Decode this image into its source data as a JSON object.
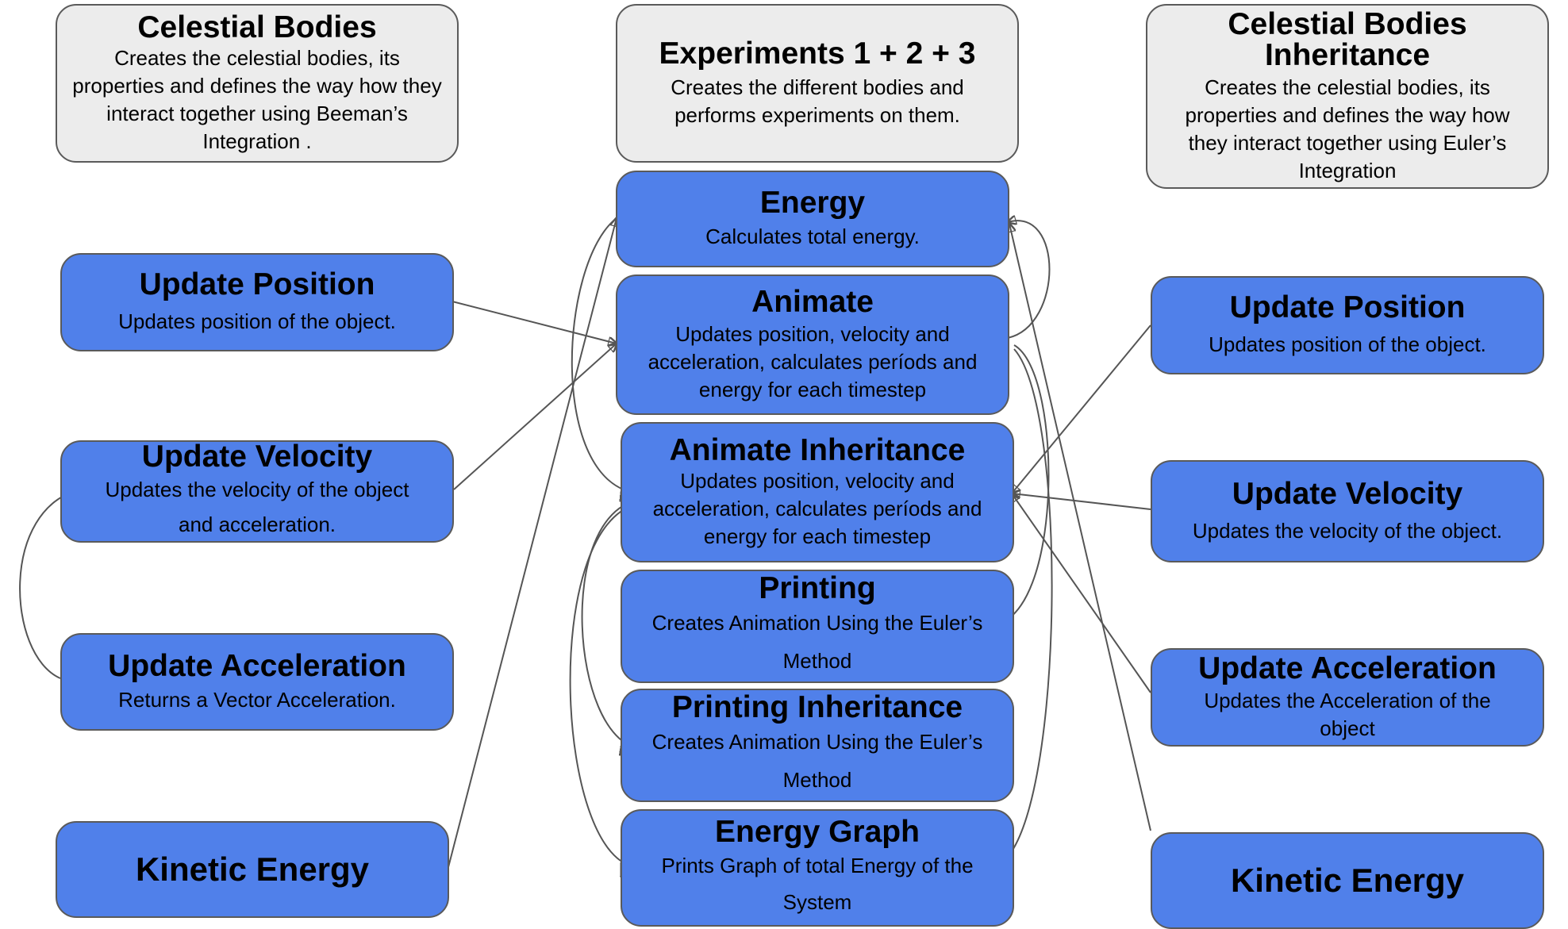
{
  "groups": {
    "celestial": {
      "title": "Celestial Bodies",
      "desc": "Creates the celestial bodies, its properties and defines the way how they interact together using Beeman’s Integration ."
    },
    "experiments": {
      "title": "Experiments 1 + 2 + 3",
      "desc": "Creates the different bodies and performs experiments on them."
    },
    "inheritance": {
      "title": "Celestial Bodies Inheritance",
      "desc": "Creates the celestial bodies, its properties and defines the way how they interact together using Euler’s Integration"
    }
  },
  "left": {
    "update_position": {
      "title": "Update Position",
      "desc": "Updates position of the object."
    },
    "update_velocity": {
      "title": "Update Velocity",
      "desc": "Updates the velocity of the object and acceleration."
    },
    "update_acceleration": {
      "title": "Update Acceleration",
      "desc": "Returns a Vector Acceleration."
    },
    "kinetic_energy": {
      "title": "Kinetic Energy"
    }
  },
  "center": {
    "energy": {
      "title": "Energy",
      "desc": "Calculates total energy."
    },
    "animate": {
      "title": "Animate",
      "desc": "Updates position, velocity and acceleration, calculates períods and energy for each timestep"
    },
    "animate_inheritance": {
      "title": "Animate Inheritance",
      "desc": "Updates position, velocity and acceleration, calculates períods and energy for each timestep"
    },
    "printing": {
      "title": "Printing",
      "desc": "Creates Animation Using the Euler’s Method"
    },
    "printing_inheritance": {
      "title": "Printing Inheritance",
      "desc": "Creates Animation Using the Euler’s Method"
    },
    "energy_graph": {
      "title": "Energy Graph",
      "desc": "Prints Graph of total Energy of the System"
    }
  },
  "right": {
    "update_position": {
      "title": "Update Position",
      "desc": "Updates position of the object."
    },
    "update_velocity": {
      "title": "Update Velocity",
      "desc": "Updates the velocity of the object."
    },
    "update_acceleration": {
      "title": "Update Acceleration",
      "desc": "Updates the Acceleration of the object"
    },
    "kinetic_energy": {
      "title": "Kinetic Energy"
    }
  },
  "colors": {
    "node_fill": "#5080ea",
    "group_fill": "#ececec",
    "border": "#5a5a5a",
    "edge": "#555555"
  }
}
